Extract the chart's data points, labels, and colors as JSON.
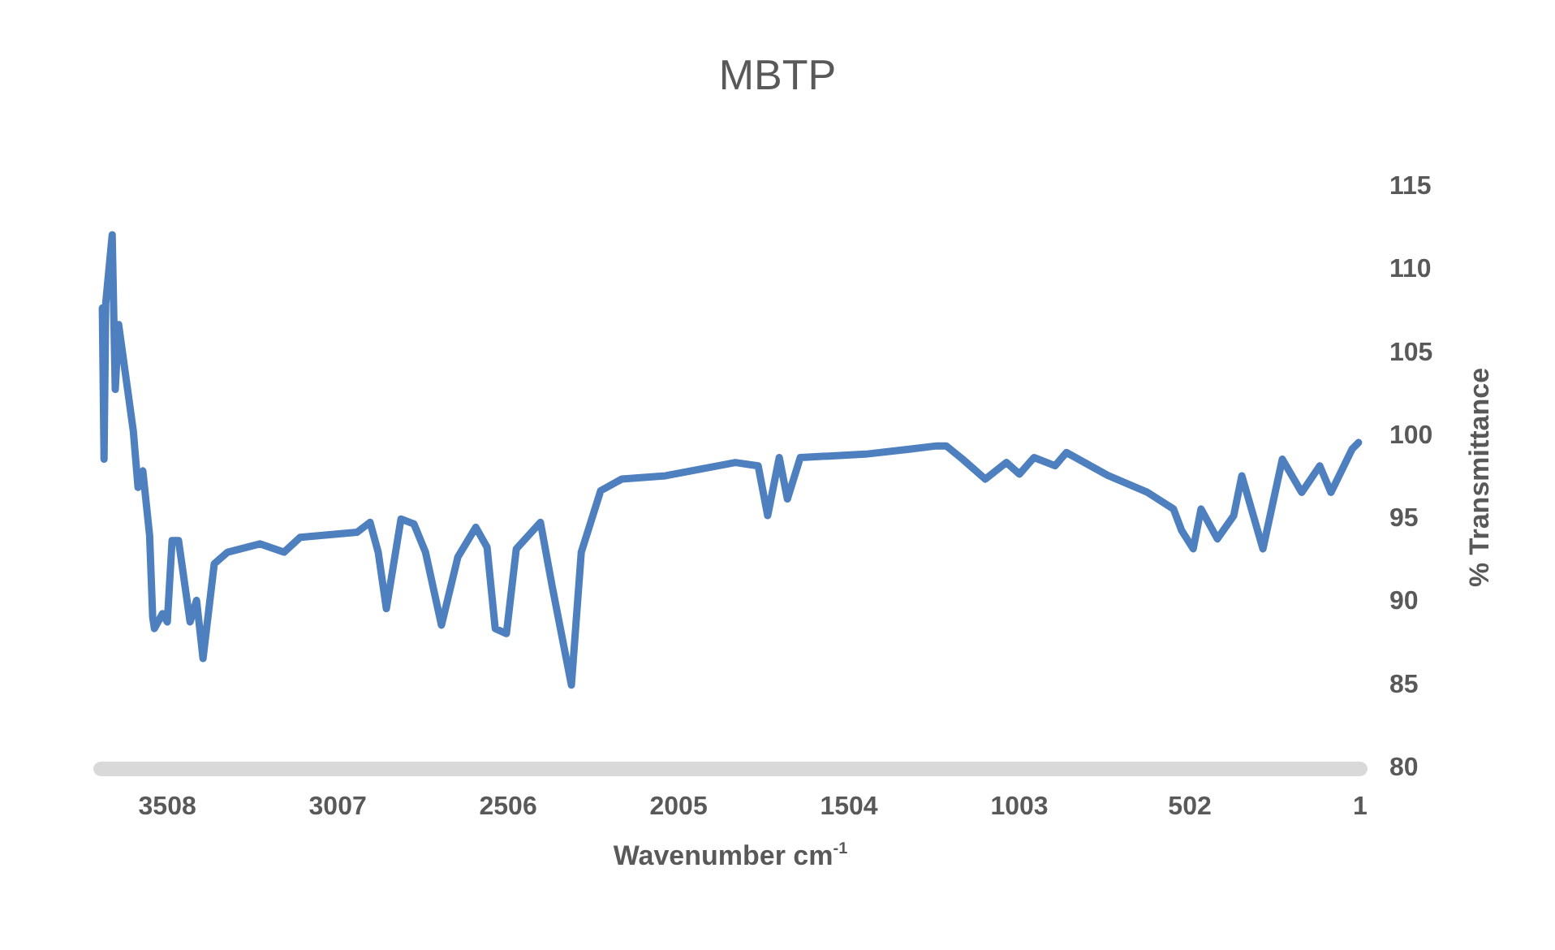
{
  "chart_data": {
    "type": "line",
    "title": "MBTP",
    "xlabel": "Wavenumber cm$^{-1}$",
    "ylabel": "% Transmittance",
    "x": [
      3699,
      3694,
      3689,
      3670,
      3661,
      3651,
      3608,
      3594,
      3580,
      3560,
      3551,
      3546,
      3522,
      3508,
      3494,
      3475,
      3441,
      3422,
      3403,
      3370,
      3331,
      3236,
      3165,
      3117,
      2950,
      2912,
      2888,
      2864,
      2821,
      2783,
      2749,
      2702,
      2654,
      2601,
      2568,
      2544,
      2511,
      2482,
      2411,
      2377,
      2320,
      2291,
      2234,
      2172,
      2043,
      1838,
      1771,
      1743,
      1709,
      1685,
      1647,
      1456,
      1327,
      1246,
      1218,
      1170,
      1103,
      1041,
      1003,
      960,
      898,
      865,
      741,
      626,
      550,
      526,
      492,
      469,
      421,
      373,
      349,
      287,
      230,
      173,
      120,
      87,
      25,
      6
    ],
    "series": [
      {
        "color": "#4e7fbf",
        "values": [
          107.7,
          98.6,
          108,
          112.1,
          102.8,
          106.7,
          100.3,
          96.9,
          97.9,
          94.0,
          89.1,
          88.4,
          89.3,
          88.8,
          93.7,
          93.7,
          88.8,
          90.1,
          86.6,
          92.3,
          93.0,
          93.5,
          93.0,
          93.9,
          94.2,
          94.8,
          93.0,
          89.6,
          95.0,
          94.7,
          93.0,
          88.6,
          92.7,
          94.5,
          93.3,
          88.4,
          88.1,
          93.2,
          94.8,
          91.0,
          85.0,
          93.0,
          96.7,
          97.4,
          97.6,
          98.4,
          98.2,
          95.2,
          98.7,
          96.2,
          98.7,
          98.9,
          99.2,
          99.4,
          99.4,
          98.6,
          97.4,
          98.4,
          97.7,
          98.7,
          98.2,
          99.0,
          97.6,
          96.6,
          95.6,
          94.3,
          93.2,
          95.6,
          93.8,
          95.2,
          97.6,
          93.2,
          98.6,
          96.6,
          98.2,
          96.6,
          99.2,
          99.6
        ]
      }
    ],
    "xlim": [
      3704,
      1
    ],
    "xticks": [
      3508,
      3007,
      2506,
      2005,
      1504,
      1003,
      502,
      1
    ],
    "ylim": [
      80,
      115
    ],
    "yticks": [
      80,
      85,
      90,
      95,
      100,
      105,
      110,
      115
    ],
    "grid": false,
    "marker": "none",
    "line_style": "solid"
  }
}
